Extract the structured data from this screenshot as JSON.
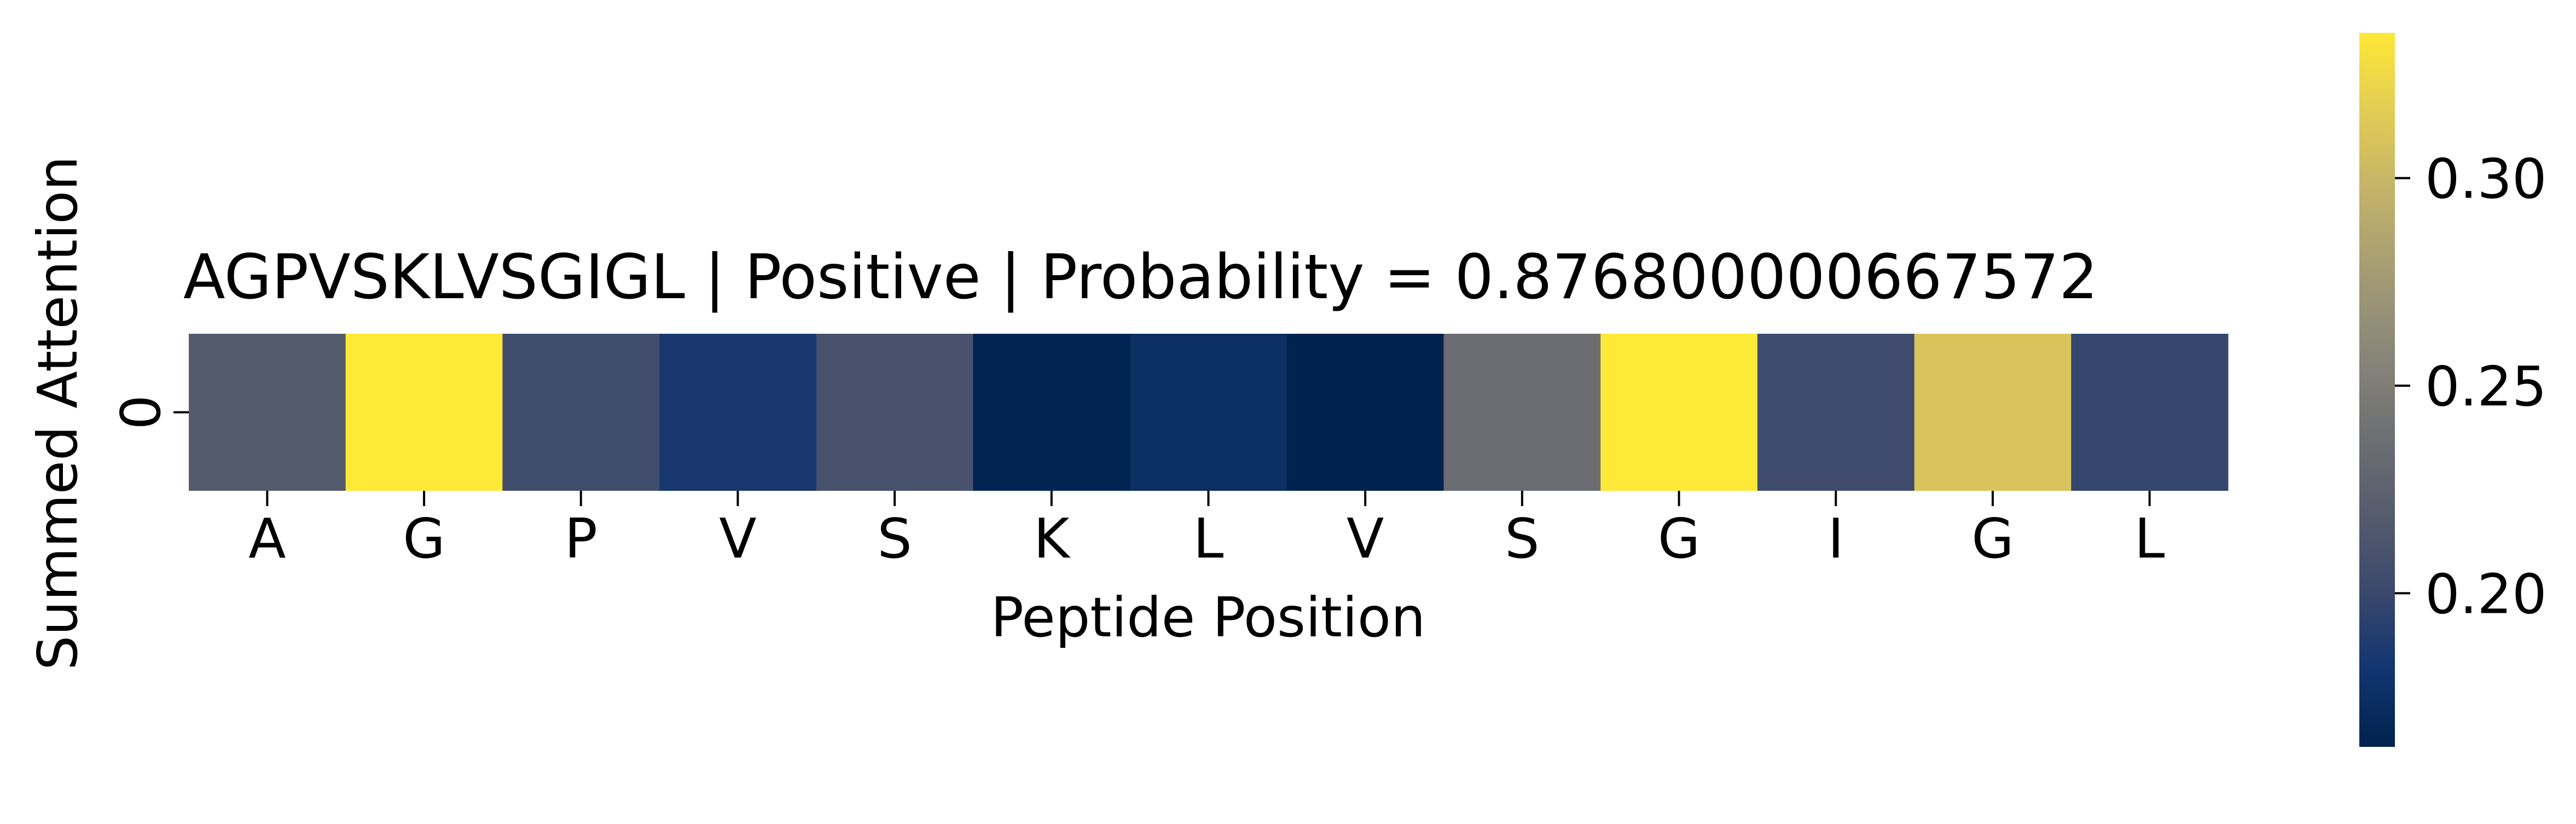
{
  "chart_data": {
    "type": "heatmap",
    "title": "AGPVSKLVSGIGL | Positive | Probability = 0.876800000667572",
    "xlabel": "Peptide Position",
    "ylabel": "Summed Attention",
    "x_ticks": [
      "A",
      "G",
      "P",
      "V",
      "S",
      "K",
      "L",
      "V",
      "S",
      "G",
      "I",
      "G",
      "L"
    ],
    "y_ticks": [
      "0"
    ],
    "values": [
      [
        0.218,
        0.335,
        0.205,
        0.185,
        0.21,
        0.165,
        0.175,
        0.163,
        0.235,
        0.335,
        0.203,
        0.31,
        0.198
      ]
    ],
    "colormap": "cividis",
    "colorbar": {
      "vmin": 0.163,
      "vmax": 0.335,
      "ticks": [
        0.2,
        0.25,
        0.3
      ],
      "tick_labels": [
        "0.20",
        "0.25",
        "0.30"
      ]
    },
    "colors": {
      "cmap_stops": [
        "#00224e",
        "#123570",
        "#3b496c",
        "#575d6d",
        "#707173",
        "#8a8779",
        "#a59c74",
        "#c3b369",
        "#e1cc55",
        "#fee838"
      ]
    }
  }
}
